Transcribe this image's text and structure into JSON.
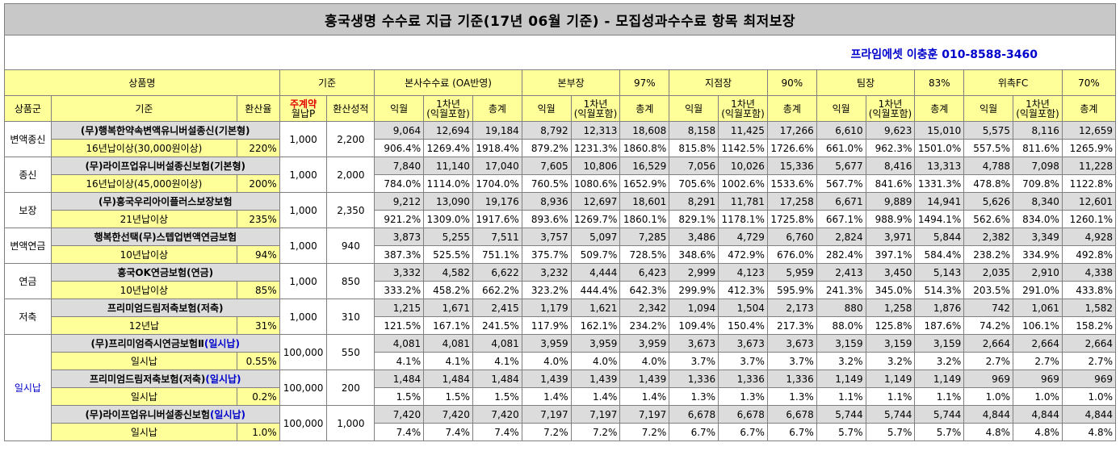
{
  "title": "흥국생명 수수료 지급 기준(17년 06월 기준) - 모집성과수수료 항목 최저보장",
  "contact": "프라임에셋 이충훈 010-8588-3460",
  "header": {
    "product_name": "상품명",
    "basis": "기준",
    "groups": [
      {
        "name": "본사수수료 (OA반영)",
        "pct": ""
      },
      {
        "name": "본부장",
        "pct": "97%"
      },
      {
        "name": "지점장",
        "pct": "90%"
      },
      {
        "name": "팀장",
        "pct": "83%"
      },
      {
        "name": "위촉FC",
        "pct": "70%"
      }
    ],
    "sub": {
      "group": "상품군",
      "criteria": "기준",
      "conversion_rate": "환산율",
      "main_contract_a": "주계약",
      "main_contract_b": "월납P",
      "converted_result": "환산성적",
      "m1": "익월",
      "y1_a": "1차년",
      "y1_b": "(익월포함)",
      "total": "총계"
    }
  },
  "rows": [
    {
      "group": "변액종신",
      "name": "(무)행복한약속변액유니버설종신(기본형)",
      "name_tag": "",
      "criteria": "16년납이상(30,000원이상)",
      "rate": "220%",
      "premium": "1,000",
      "score": "2,200",
      "v": [
        "9,064",
        "12,694",
        "19,184",
        "8,792",
        "12,313",
        "18,608",
        "8,158",
        "11,425",
        "17,266",
        "6,610",
        "9,623",
        "15,010",
        "5,575",
        "8,116",
        "12,659"
      ],
      "p": [
        "906.4%",
        "1269.4%",
        "1918.4%",
        "879.2%",
        "1231.3%",
        "1860.8%",
        "815.8%",
        "1142.5%",
        "1726.6%",
        "661.0%",
        "962.3%",
        "1501.0%",
        "557.5%",
        "811.6%",
        "1265.9%"
      ]
    },
    {
      "group": "종신",
      "name": "(무)라이프업유니버설종신보험(기본형)",
      "name_tag": "",
      "criteria": "16년납이상(45,000원이상)",
      "rate": "200%",
      "premium": "1,000",
      "score": "2,000",
      "v": [
        "7,840",
        "11,140",
        "17,040",
        "7,605",
        "10,806",
        "16,529",
        "7,056",
        "10,026",
        "15,336",
        "5,677",
        "8,416",
        "13,313",
        "4,788",
        "7,098",
        "11,228"
      ],
      "p": [
        "784.0%",
        "1114.0%",
        "1704.0%",
        "760.5%",
        "1080.6%",
        "1652.9%",
        "705.6%",
        "1002.6%",
        "1533.6%",
        "567.7%",
        "841.6%",
        "1331.3%",
        "478.8%",
        "709.8%",
        "1122.8%"
      ]
    },
    {
      "group": "보장",
      "name": "(무)흥국우리아이플러스보장보험",
      "name_tag": "",
      "criteria": "21년납이상",
      "rate": "235%",
      "premium": "1,000",
      "score": "2,350",
      "v": [
        "9,212",
        "13,090",
        "19,176",
        "8,936",
        "12,697",
        "18,601",
        "8,291",
        "11,781",
        "17,258",
        "6,671",
        "9,889",
        "14,941",
        "5,626",
        "8,340",
        "12,601"
      ],
      "p": [
        "921.2%",
        "1309.0%",
        "1917.6%",
        "893.6%",
        "1269.7%",
        "1860.1%",
        "829.1%",
        "1178.1%",
        "1725.8%",
        "667.1%",
        "988.9%",
        "1494.1%",
        "562.6%",
        "834.0%",
        "1260.1%"
      ]
    },
    {
      "group": "변액연금",
      "name": "행복한선택(무)스텝업변액연금보험",
      "name_tag": "",
      "criteria": "10년납이상",
      "rate": "94%",
      "premium": "1,000",
      "score": "940",
      "v": [
        "3,873",
        "5,255",
        "7,511",
        "3,757",
        "5,097",
        "7,285",
        "3,486",
        "4,729",
        "6,760",
        "2,824",
        "3,971",
        "5,844",
        "2,382",
        "3,349",
        "4,928"
      ],
      "p": [
        "387.3%",
        "525.5%",
        "751.1%",
        "375.7%",
        "509.7%",
        "728.5%",
        "348.6%",
        "472.9%",
        "676.0%",
        "282.4%",
        "397.1%",
        "584.4%",
        "238.2%",
        "334.9%",
        "492.8%"
      ]
    },
    {
      "group": "연금",
      "name": "흥국OK연금보험(연금)",
      "name_tag": "",
      "criteria": "10년납이상",
      "rate": "85%",
      "premium": "1,000",
      "score": "850",
      "v": [
        "3,332",
        "4,582",
        "6,622",
        "3,232",
        "4,444",
        "6,423",
        "2,999",
        "4,123",
        "5,959",
        "2,413",
        "3,450",
        "5,143",
        "2,035",
        "2,910",
        "4,338"
      ],
      "p": [
        "333.2%",
        "458.2%",
        "662.2%",
        "323.2%",
        "444.4%",
        "642.3%",
        "299.9%",
        "412.3%",
        "595.9%",
        "241.3%",
        "345.0%",
        "514.3%",
        "203.5%",
        "291.0%",
        "433.8%"
      ]
    },
    {
      "group": "저축",
      "name": "프리미엄드림저축보험(저축)",
      "name_tag": "",
      "criteria": "12년납",
      "rate": "31%",
      "premium": "1,000",
      "score": "310",
      "v": [
        "1,215",
        "1,671",
        "2,415",
        "1,179",
        "1,621",
        "2,342",
        "1,094",
        "1,504",
        "2,173",
        "880",
        "1,258",
        "1,876",
        "742",
        "1,061",
        "1,582"
      ],
      "p": [
        "121.5%",
        "167.1%",
        "241.5%",
        "117.9%",
        "162.1%",
        "234.2%",
        "109.4%",
        "150.4%",
        "217.3%",
        "88.0%",
        "125.8%",
        "187.6%",
        "74.2%",
        "106.1%",
        "158.2%"
      ]
    },
    {
      "group": "일시납",
      "name": "(무)프리미엄즉시연금보험Ⅱ",
      "name_tag": "(일시납)",
      "criteria": "일시납",
      "rate": "0.55%",
      "premium": "100,000",
      "score": "550",
      "v": [
        "4,081",
        "4,081",
        "4,081",
        "3,959",
        "3,959",
        "3,959",
        "3,673",
        "3,673",
        "3,673",
        "3,159",
        "3,159",
        "3,159",
        "2,664",
        "2,664",
        "2,664"
      ],
      "p": [
        "4.1%",
        "4.1%",
        "4.1%",
        "4.0%",
        "4.0%",
        "4.0%",
        "3.7%",
        "3.7%",
        "3.7%",
        "3.2%",
        "3.2%",
        "3.2%",
        "2.7%",
        "2.7%",
        "2.7%"
      ]
    },
    {
      "group": "",
      "name": "프리미엄드림저축보험(저축)",
      "name_tag": "(일시납)",
      "criteria": "일시납",
      "rate": "0.2%",
      "premium": "100,000",
      "score": "200",
      "v": [
        "1,484",
        "1,484",
        "1,484",
        "1,439",
        "1,439",
        "1,439",
        "1,336",
        "1,336",
        "1,336",
        "1,149",
        "1,149",
        "1,149",
        "969",
        "969",
        "969"
      ],
      "p": [
        "1.5%",
        "1.5%",
        "1.5%",
        "1.4%",
        "1.4%",
        "1.4%",
        "1.3%",
        "1.3%",
        "1.3%",
        "1.1%",
        "1.1%",
        "1.1%",
        "1.0%",
        "1.0%",
        "1.0%"
      ]
    },
    {
      "group": "",
      "name": "(무)라이프업유니버설종신보험",
      "name_tag": "(일시납)",
      "criteria": "일시납",
      "rate": "1.0%",
      "premium": "100,000",
      "score": "1,000",
      "v": [
        "7,420",
        "7,420",
        "7,420",
        "7,197",
        "7,197",
        "7,197",
        "6,678",
        "6,678",
        "6,678",
        "5,744",
        "5,744",
        "5,744",
        "4,844",
        "4,844",
        "4,844"
      ],
      "p": [
        "7.4%",
        "7.4%",
        "7.4%",
        "7.2%",
        "7.2%",
        "7.2%",
        "6.7%",
        "6.7%",
        "6.7%",
        "5.7%",
        "5.7%",
        "5.7%",
        "4.8%",
        "4.8%",
        "4.8%"
      ]
    }
  ]
}
